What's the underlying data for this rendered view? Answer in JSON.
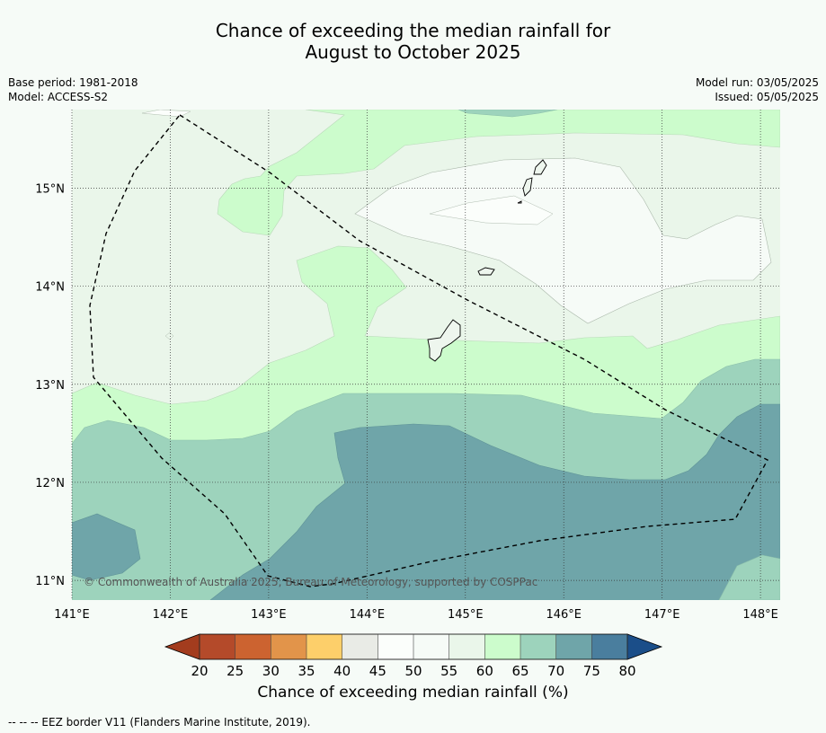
{
  "title_line1": "Chance of exceeding the median rainfall for",
  "title_line2": "August to October 2025",
  "meta_left": [
    "Base period: 1981-2018",
    "Model: ACCESS-S2"
  ],
  "meta_right": [
    "Model run: 03/05/2025",
    "Issued: 05/05/2025"
  ],
  "copyright": "© Commonwealth of Australia 2025, Bureau of Meteorology, supported by COSPPac",
  "colorbar": {
    "label": "Chance of exceeding median rainfall (%)",
    "ticks": [
      "20",
      "25",
      "30",
      "35",
      "40",
      "45",
      "50",
      "55",
      "60",
      "65",
      "70",
      "75",
      "80"
    ],
    "colors": [
      "#b44a2a",
      "#cc6330",
      "#e2944a",
      "#fdcf6a",
      "#e9ebe6",
      "#fbfefb",
      "#f6fbf7",
      "#eaf6ea",
      "#ccfccc",
      "#9dd3bc",
      "#6fa5a9",
      "#4a7e9e"
    ],
    "under_color": "#a33c1e",
    "over_color": "#1b4e89"
  },
  "map": {
    "lon_range": [
      141,
      148.2
    ],
    "lat_range": [
      10.8,
      15.8
    ],
    "lon_ticks": [
      {
        "v": 141,
        "label": "141°E"
      },
      {
        "v": 142,
        "label": "142°E"
      },
      {
        "v": 143,
        "label": "143°E"
      },
      {
        "v": 144,
        "label": "144°E"
      },
      {
        "v": 145,
        "label": "145°E"
      },
      {
        "v": 146,
        "label": "146°E"
      },
      {
        "v": 147,
        "label": "147°E"
      },
      {
        "v": 148,
        "label": "148°E"
      }
    ],
    "lat_ticks": [
      {
        "v": 11,
        "label": "11°N"
      },
      {
        "v": 12,
        "label": "12°N"
      },
      {
        "v": 13,
        "label": "13°N"
      },
      {
        "v": 14,
        "label": "14°N"
      },
      {
        "v": 15,
        "label": "15°N"
      }
    ]
  },
  "footer": "-- -- -- EEZ border V11 (Flanders Marine Institute, 2019)."
}
